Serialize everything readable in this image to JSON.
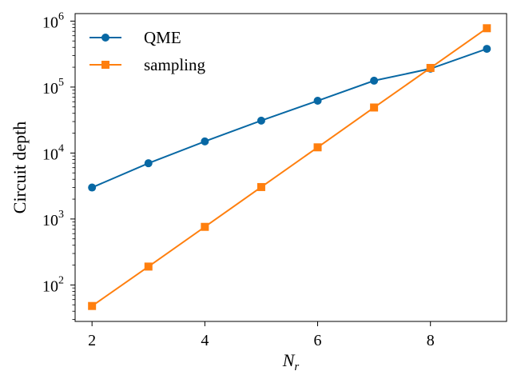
{
  "chart_data": {
    "type": "line",
    "xlabel": "N",
    "xlabel_subscript": "r",
    "ylabel": "Circuit depth",
    "yscale": "log",
    "xlim": [
      1.7,
      9.35
    ],
    "ylim": [
      28,
      1300000
    ],
    "xticks": [
      2,
      4,
      6,
      8
    ],
    "xtick_labels": [
      "2",
      "4",
      "6",
      "8"
    ],
    "yticks": [
      100,
      1000,
      10000,
      100000,
      1000000
    ],
    "ytick_base": "10",
    "ytick_exponents": [
      "2",
      "3",
      "4",
      "5",
      "6"
    ],
    "legend_position": "upper-left",
    "grid": false,
    "x": [
      2,
      3,
      4,
      5,
      6,
      7,
      8,
      9
    ],
    "series": [
      {
        "name": "QME",
        "color": "#0868a4",
        "marker": "circle",
        "values": [
          3000,
          7000,
          15000,
          31000,
          62000,
          125000,
          190000,
          380000
        ]
      },
      {
        "name": "sampling",
        "color": "#ff7f0e",
        "marker": "square",
        "values": [
          48,
          190,
          760,
          3050,
          12200,
          49000,
          195000,
          780000
        ]
      }
    ]
  }
}
